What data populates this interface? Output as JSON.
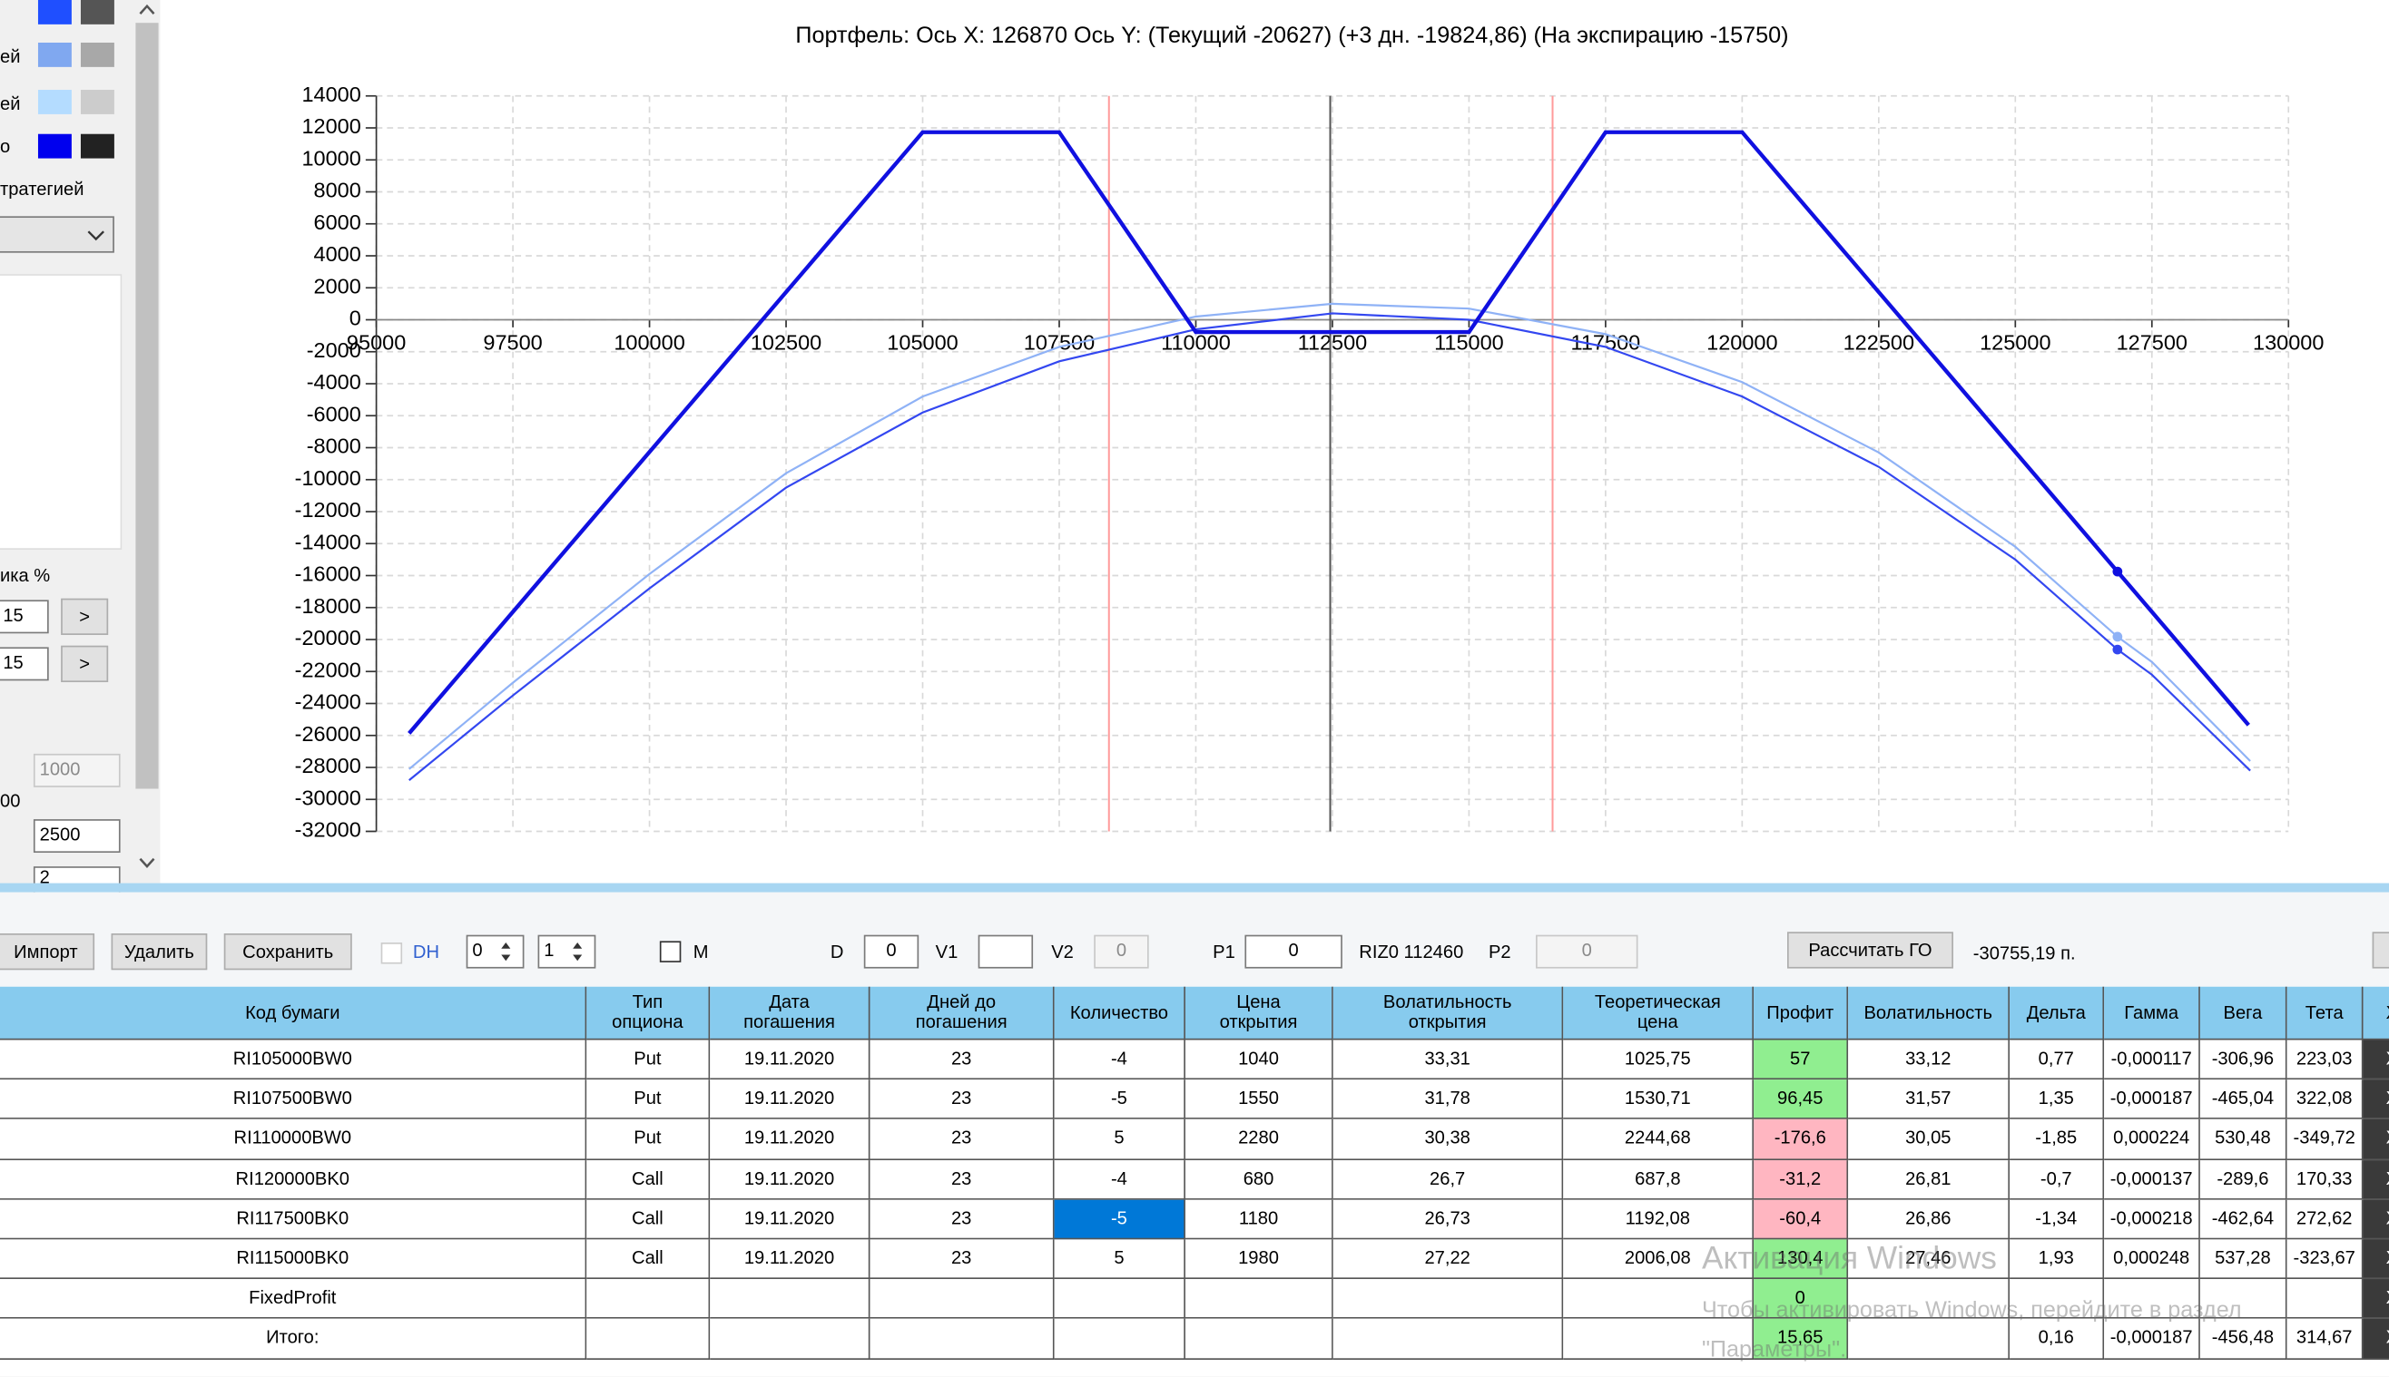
{
  "chart_data": {
    "type": "line",
    "title": "Портфель: Ось X: 126870 Ось Y:  (Текущий -20627)  (+3 дн. -19824,86)  (На экспирацию -15750)",
    "xlim": [
      95000,
      130000
    ],
    "xticks": [
      95000,
      97500,
      100000,
      102500,
      105000,
      107500,
      110000,
      112500,
      115000,
      117500,
      120000,
      122500,
      125000,
      127500,
      130000
    ],
    "ylim": [
      -32000,
      14000
    ],
    "yticks": [
      14000,
      12000,
      10000,
      8000,
      6000,
      4000,
      2000,
      0,
      -2000,
      -4000,
      -6000,
      -8000,
      -10000,
      -12000,
      -14000,
      -16000,
      -18000,
      -20000,
      -22000,
      -24000,
      -26000,
      -28000,
      -30000,
      -32000
    ],
    "grid": true,
    "cursor_x": 126870,
    "vlines": [
      {
        "x": 112460,
        "color": "#555555"
      },
      {
        "x": 108410,
        "color": "#ff9a9a"
      },
      {
        "x": 116530,
        "color": "#ff9a9a"
      }
    ],
    "series": [
      {
        "color": "#8fb2f6",
        "width": 1.3,
        "x": [
          95600,
          97500,
          100000,
          102500,
          105000,
          107500,
          110000,
          112500,
          115000,
          117500,
          120000,
          122500,
          125000,
          126870,
          127500,
          129300
        ],
        "values": [
          -28100,
          -22700,
          -15900,
          -9600,
          -4800,
          -1700,
          200,
          1000,
          700,
          -900,
          -3900,
          -8300,
          -14200,
          -19824.86,
          -21400,
          -27600
        ]
      },
      {
        "color": "#3347f0",
        "width": 1.3,
        "x": [
          95600,
          97500,
          100000,
          102500,
          105000,
          107500,
          110000,
          112500,
          115000,
          117500,
          120000,
          122500,
          125000,
          126870,
          127500,
          129300
        ],
        "values": [
          -28800,
          -23500,
          -16800,
          -10500,
          -5800,
          -2600,
          -600,
          400,
          0,
          -1700,
          -4800,
          -9200,
          -15000,
          -20627,
          -22200,
          -28200
        ]
      },
      {
        "color": "#1010e0",
        "width": 2.6,
        "x": [
          95600,
          105000,
          107500,
          110000,
          115000,
          117500,
          120000,
          126870,
          129270
        ],
        "values": [
          -25870,
          11730,
          11730,
          -770,
          -770,
          11730,
          11730,
          -15750,
          -25350
        ]
      }
    ]
  },
  "left_panel": {
    "labels": [
      "ей",
      "ей",
      "о",
      "тратегией",
      "ика %",
      "00"
    ],
    "inputs": [
      "15",
      "15",
      "1000",
      "2500",
      "2"
    ],
    "buttons": [
      ">",
      ">"
    ],
    "swatches": [
      [
        "#1f4fff",
        "#555555"
      ],
      [
        "#80a8f0",
        "#a8a8a8"
      ],
      [
        "#b4dcff",
        "#cccccc"
      ],
      [
        "#0000ee",
        "#222222"
      ]
    ]
  },
  "toolbar": {
    "buttons": [
      "Импорт",
      "Удалить",
      "Сохранить"
    ],
    "dh": "DH",
    "spin1": "0",
    "spin2": "1",
    "m": "M",
    "d_label": "D",
    "d_value": "0",
    "v1_label": "V1",
    "v2_label": "V2",
    "v2_value": "0",
    "p1_label": "P1",
    "p1_value": "0",
    "instrument": "RIZ0 112460",
    "p2_label": "P2",
    "p2_value": "0",
    "calc_button": "Рассчитать ГО",
    "go_value": "-30755,19 п."
  },
  "table": {
    "header": [
      "Код бумаги",
      "Тип\nопциона",
      "Дата\nпогашения",
      "Дней до\nпогашения",
      "Количество",
      "Цена\nоткрытия",
      "Волатильность\nоткрытия",
      "Теоретическая\nцена",
      "Профит",
      "Волатильность",
      "Дельта",
      "Гамма",
      "Вега",
      "Тета",
      "Х"
    ],
    "rows": [
      [
        "RI105000BW0",
        "Put",
        "19.11.2020",
        "23",
        "-4",
        "1040",
        "33,31",
        "1025,75",
        "57",
        "33,12",
        "0,77",
        "-0,000117",
        "-306,96",
        "223,03",
        "X"
      ],
      [
        "RI107500BW0",
        "Put",
        "19.11.2020",
        "23",
        "-5",
        "1550",
        "31,78",
        "1530,71",
        "96,45",
        "31,57",
        "1,35",
        "-0,000187",
        "-465,04",
        "322,08",
        "X"
      ],
      [
        "RI110000BW0",
        "Put",
        "19.11.2020",
        "23",
        "5",
        "2280",
        "30,38",
        "2244,68",
        "-176,6",
        "30,05",
        "-1,85",
        "0,000224",
        "530,48",
        "-349,72",
        "X"
      ],
      [
        "RI120000BK0",
        "Call",
        "19.11.2020",
        "23",
        "-4",
        "680",
        "26,7",
        "687,8",
        "-31,2",
        "26,81",
        "-0,7",
        "-0,000137",
        "-289,6",
        "170,33",
        "X"
      ],
      [
        "RI117500BK0",
        "Call",
        "19.11.2020",
        "23",
        "-5",
        "1180",
        "26,73",
        "1192,08",
        "-60,4",
        "26,86",
        "-1,34",
        "-0,000218",
        "-462,64",
        "272,62",
        "X"
      ],
      [
        "RI115000BK0",
        "Call",
        "19.11.2020",
        "23",
        "5",
        "1980",
        "27,22",
        "2006,08",
        "130,4",
        "27,46",
        "1,93",
        "0,000248",
        "537,28",
        "-323,67",
        "X"
      ],
      [
        "FixedProfit",
        null,
        null,
        null,
        null,
        null,
        null,
        null,
        "0",
        null,
        null,
        null,
        null,
        null,
        "X"
      ],
      [
        "Итого:",
        null,
        null,
        null,
        null,
        null,
        null,
        null,
        "15,65",
        null,
        "0,16",
        "-0,000187",
        "-456,48",
        "314,67",
        "X"
      ]
    ],
    "profit_fill": [
      "#90ee90",
      "#90ee90",
      "#ffb6c1",
      "#ffb6c1",
      "#ffb6c1",
      "#90ee90",
      "#90ee90",
      "#90ee90"
    ],
    "selected": {
      "row": 4,
      "col": 4,
      "color": "#0078d7"
    }
  },
  "watermark": {
    "title": "Активация Windows",
    "text": "Чтобы активировать Windows, перейдите в раздел\n\"Параметры\"."
  }
}
